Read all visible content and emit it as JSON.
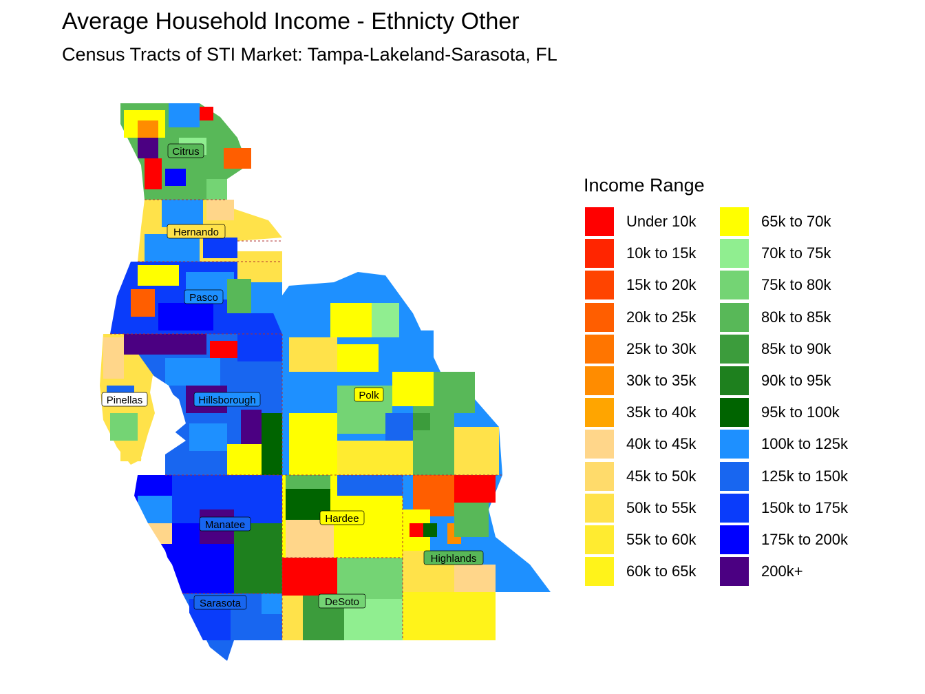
{
  "title": "Average Household Income - Ethnicty Other",
  "subtitle": "Census Tracts of STI Market: Tampa-Lakeland-Sarasota, FL",
  "legend": {
    "title": "Income Range",
    "items": [
      {
        "label": "Under 10k",
        "color": "#FF0000"
      },
      {
        "label": "10k to 15k",
        "color": "#FF2500"
      },
      {
        "label": "15k to 20k",
        "color": "#FF4400"
      },
      {
        "label": "20k to 25k",
        "color": "#FF5E00"
      },
      {
        "label": "25k to 30k",
        "color": "#FF7500"
      },
      {
        "label": "30k to 35k",
        "color": "#FF8C00"
      },
      {
        "label": "35k to 40k",
        "color": "#FFA500"
      },
      {
        "label": "40k to 45k",
        "color": "#FFD68A"
      },
      {
        "label": "45k to 50k",
        "color": "#FFDB6B"
      },
      {
        "label": "50k to 55k",
        "color": "#FFE24A"
      },
      {
        "label": "55k to 60k",
        "color": "#FFEB30"
      },
      {
        "label": "60k to 65k",
        "color": "#FFF31A"
      },
      {
        "label": "65k to 70k",
        "color": "#FFFF00"
      },
      {
        "label": "70k to 75k",
        "color": "#90EE90"
      },
      {
        "label": "75k to 80k",
        "color": "#74D474"
      },
      {
        "label": "80k to 85k",
        "color": "#58B858"
      },
      {
        "label": "85k to 90k",
        "color": "#3C9C3C"
      },
      {
        "label": "90k to 95k",
        "color": "#1E801E"
      },
      {
        "label": "95k to 100k",
        "color": "#006400"
      },
      {
        "label": "100k to 125k",
        "color": "#1E90FF"
      },
      {
        "label": "125k to 150k",
        "color": "#1866F0"
      },
      {
        "label": "150k to 175k",
        "color": "#0A3CFA"
      },
      {
        "label": "175k to 200k",
        "color": "#0000FF"
      },
      {
        "label": "200k+",
        "color": "#4B0082"
      }
    ]
  },
  "counties": [
    "Citrus",
    "Hernando",
    "Pasco",
    "Pinellas",
    "Hillsborough",
    "Polk",
    "Manatee",
    "Hardee",
    "Highlands",
    "Sarasota",
    "DeSoto"
  ]
}
